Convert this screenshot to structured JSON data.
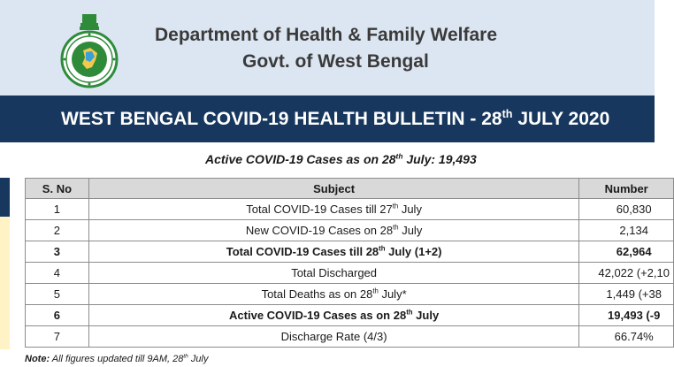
{
  "header": {
    "department": "Department of Health & Family Welfare",
    "government": "Govt. of West Bengal",
    "emblem_icon": "west-bengal-emblem-icon"
  },
  "banner": {
    "title_prefix": "WEST BENGAL COVID-19 HEALTH BULLETIN -  28",
    "title_sup": "th",
    "title_suffix": " JULY 2020"
  },
  "subtitle": {
    "prefix": "Active COVID-19 Cases as on 28",
    "sup": "th",
    "suffix": " July: 19,493"
  },
  "table": {
    "headers": {
      "sno": "S. No",
      "subject": "Subject",
      "number": "Number"
    },
    "rows": [
      {
        "sno": "1",
        "subject_pre": "Total COVID-19 Cases till 27",
        "sup": "th",
        "subject_post": " July",
        "number": "60,830"
      },
      {
        "sno": "2",
        "subject_pre": "New COVID-19 Cases on 28",
        "sup": "th",
        "subject_post": " July",
        "number": "2,134"
      },
      {
        "sno": "3",
        "subject_pre": "Total COVID-19 Cases till 28",
        "sup": "th",
        "subject_post": " July (1+2)",
        "number": "62,964"
      },
      {
        "sno": "4",
        "subject_pre": "Total Discharged",
        "sup": "",
        "subject_post": "",
        "number": "42,022 (+2,10"
      },
      {
        "sno": "5",
        "subject_pre": "Total Deaths as on 28",
        "sup": "th",
        "subject_post": " July*",
        "number": "1,449 (+38"
      },
      {
        "sno": "6",
        "subject_pre": "Active COVID-19 Cases as on 28",
        "sup": "th",
        "subject_post": " July",
        "number": "19,493 (-9"
      },
      {
        "sno": "7",
        "subject_pre": "Discharge Rate (4/3)",
        "sup": "",
        "subject_post": "",
        "number": "66.74%"
      }
    ]
  },
  "note": {
    "label": "Note:",
    "text": " All figures updated till 9AM, 28",
    "sup": "th",
    "suffix": " July"
  },
  "colors": {
    "header_bg": "#dce6f2",
    "banner_bg": "#17375e",
    "sidebar_light": "#fff2c4",
    "emblem_green": "#2e8b3a"
  }
}
